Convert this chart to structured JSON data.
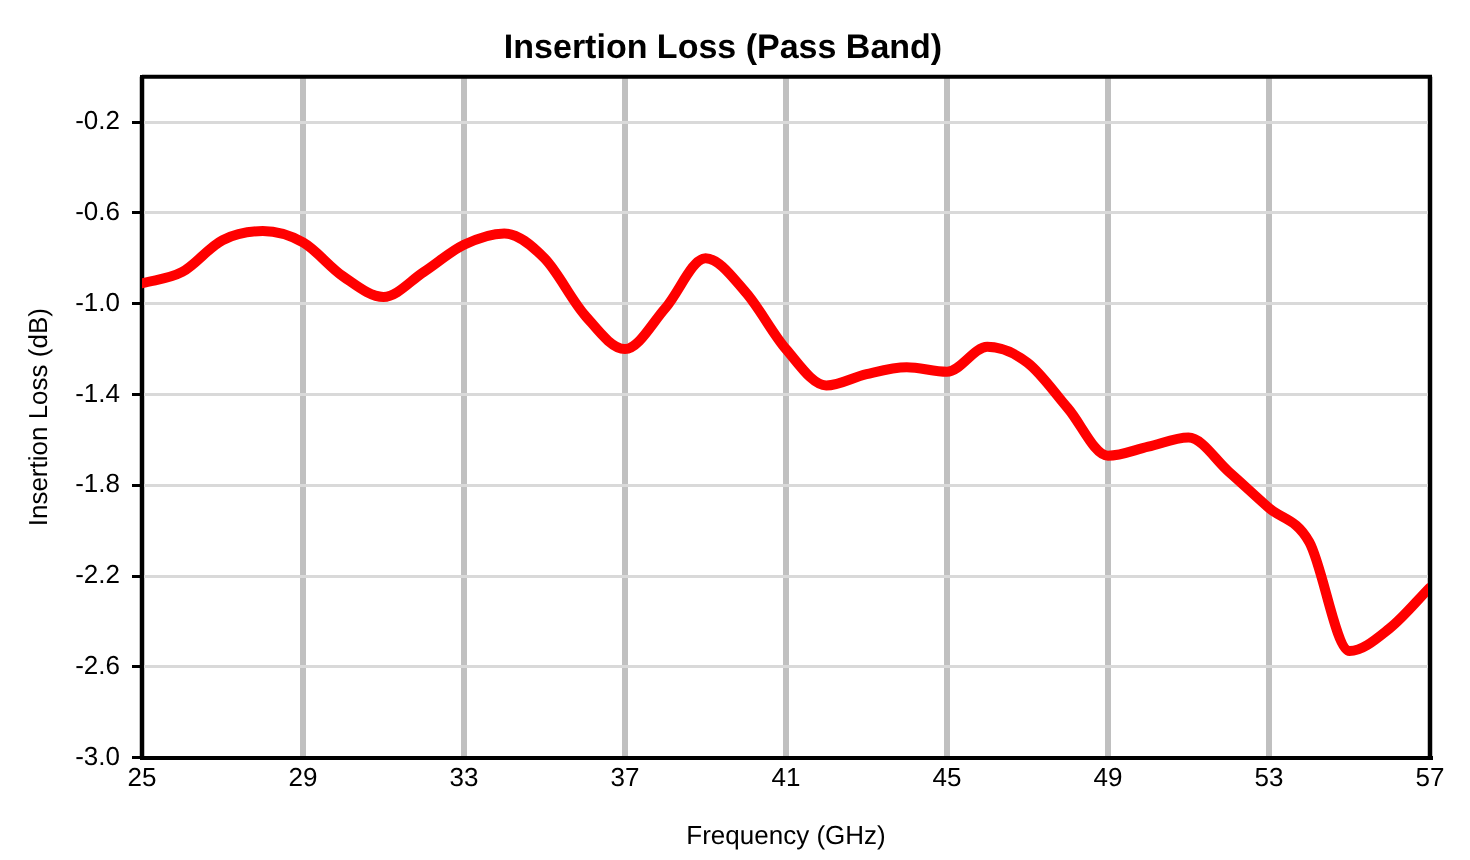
{
  "chart_data": {
    "type": "line",
    "title": "Insertion Loss (Pass Band)",
    "xlabel": "Frequency (GHz)",
    "ylabel": "Insertion Loss (dB)",
    "x": [
      25,
      26,
      27,
      28,
      29,
      30,
      31,
      32,
      33,
      34,
      35,
      36,
      37,
      38,
      39,
      40,
      41,
      42,
      43,
      44,
      45,
      46,
      47,
      48,
      49,
      50,
      51,
      52,
      53,
      54,
      55,
      56,
      57
    ],
    "series": [
      {
        "color": "#ff0000",
        "values": [
          -0.91,
          -0.86,
          -0.72,
          -0.68,
          -0.73,
          -0.88,
          -0.97,
          -0.86,
          -0.74,
          -0.69,
          -0.8,
          -1.05,
          -1.2,
          -1.02,
          -0.8,
          -0.95,
          -1.2,
          -1.36,
          -1.31,
          -1.28,
          -1.3,
          -1.19,
          -1.26,
          -1.46,
          -1.67,
          -1.63,
          -1.59,
          -1.74,
          -1.9,
          -2.05,
          -2.53,
          -2.43,
          -2.25
        ]
      }
    ],
    "xlim": [
      25,
      57
    ],
    "xticks": [
      25,
      29,
      33,
      37,
      41,
      45,
      49,
      53,
      57
    ],
    "ylim": [
      -3,
      0
    ],
    "yticks": [
      {
        "value": -3,
        "label": "-3.0"
      },
      {
        "value": -2.6,
        "label": "-2.6"
      },
      {
        "value": -2.2,
        "label": "-2.2"
      },
      {
        "value": -1.8,
        "label": "-1.8"
      },
      {
        "value": -1.4,
        "label": "-1.4"
      },
      {
        "value": -1,
        "label": "-1.0"
      },
      {
        "value": -0.6,
        "label": "-0.6"
      },
      {
        "value": -0.2,
        "label": "-0.2"
      }
    ],
    "grid": true,
    "legend": false,
    "marker": "none",
    "line_style": "solid"
  }
}
